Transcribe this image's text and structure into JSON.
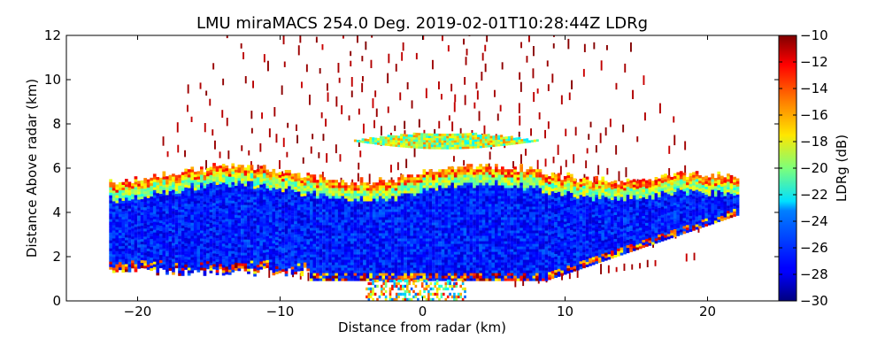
{
  "chart_data": {
    "type": "heatmap",
    "title": "LMU miraMACS 254.0 Deg. 2019-02-01T10:28:44Z  LDRg",
    "xlabel": "Distance from radar (km)",
    "ylabel": "Distance Above radar  (km)",
    "xlim": [
      -25,
      25
    ],
    "ylim": [
      0,
      12
    ],
    "xticks": [
      "−20",
      "−10",
      "0",
      "10",
      "20"
    ],
    "xtick_values": [
      -20,
      -10,
      0,
      10,
      20
    ],
    "yticks": [
      "0",
      "2",
      "4",
      "6",
      "8",
      "10",
      "12"
    ],
    "ytick_values": [
      0,
      2,
      4,
      6,
      8,
      10,
      12
    ],
    "colorbar": {
      "label": "LDRg (dB)",
      "range": [
        -30,
        -10
      ],
      "ticks": [
        "−10",
        "−12",
        "−14",
        "−16",
        "−18",
        "−20",
        "−22",
        "−24",
        "−26",
        "−28",
        "−30"
      ],
      "tick_values": [
        -10,
        -12,
        -14,
        -16,
        -18,
        -20,
        -22,
        -24,
        -26,
        -28,
        -30
      ],
      "colormap": "jet"
    },
    "scan": {
      "azimuth_deg": 254.0,
      "time": "2019-02-01T10:28:44Z",
      "variable": "LDRg",
      "ground_x_range_km": [
        -22,
        22
      ],
      "cloud_layer": {
        "base_km": 1.0,
        "top_km": 6.0,
        "typical_ldr_db": -27
      },
      "cloud_top_edge_ldr_db": -16,
      "elevated_band": {
        "x_range_km": [
          -5,
          8
        ],
        "height_km": [
          6.8,
          7.6
        ],
        "typical_ldr_db": -19
      },
      "noise_ldr_db": -10
    }
  }
}
